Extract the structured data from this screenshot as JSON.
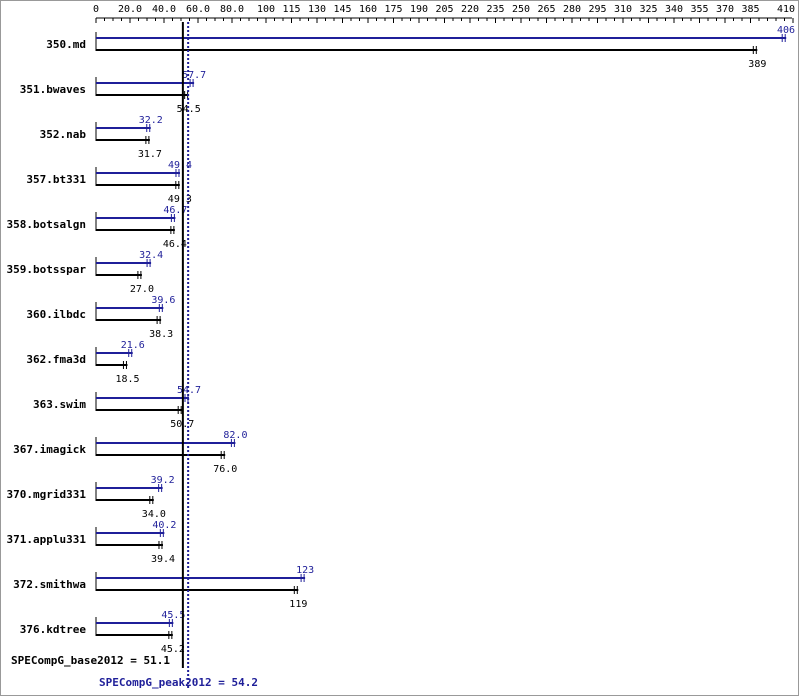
{
  "chart_data": {
    "type": "bar",
    "orientation": "horizontal",
    "x_ticks": [
      0,
      20,
      40,
      60,
      80,
      100,
      115,
      130,
      145,
      160,
      175,
      190,
      205,
      220,
      235,
      250,
      265,
      280,
      295,
      310,
      325,
      340,
      355,
      370,
      385,
      410
    ],
    "x_tick_labels": [
      "0",
      "20.0",
      "40.0",
      "60.0",
      "80.0",
      "100",
      "115",
      "130",
      "145",
      "160",
      "175",
      "190",
      "205",
      "220",
      "235",
      "250",
      "265",
      "280",
      "295",
      "310",
      "325",
      "340",
      "355",
      "370",
      "385",
      "410"
    ],
    "xlim": [
      0,
      410
    ],
    "categories": [
      "350.md",
      "351.bwaves",
      "352.nab",
      "357.bt331",
      "358.botsalgn",
      "359.botsspar",
      "360.ilbdc",
      "362.fma3d",
      "363.swim",
      "367.imagick",
      "370.mgrid331",
      "371.applu331",
      "372.smithwa",
      "376.kdtree"
    ],
    "series": [
      {
        "role": "peak",
        "color": "#1f1f99",
        "values": [
          406,
          57.7,
          32.2,
          49.4,
          46.7,
          32.4,
          39.6,
          21.6,
          54.7,
          82.0,
          39.2,
          40.2,
          123,
          45.5
        ],
        "labels": [
          "406",
          "57.7",
          "32.2",
          "49.4",
          "46.7",
          "32.4",
          "39.6",
          "21.6",
          "54.7",
          "82.0",
          "39.2",
          "40.2",
          "123",
          "45.5"
        ]
      },
      {
        "role": "base",
        "color": "#000000",
        "values": [
          389,
          54.5,
          31.7,
          49.3,
          46.4,
          27.0,
          38.3,
          18.5,
          50.7,
          76.0,
          34.0,
          39.4,
          119,
          45.2
        ],
        "labels": [
          "389",
          "54.5",
          "31.7",
          "49.3",
          "46.4",
          "27.0",
          "38.3",
          "18.5",
          "50.7",
          "76.0",
          "34.0",
          "39.4",
          "119",
          "45.2"
        ]
      }
    ],
    "summary": {
      "base_label": "SPECompG_base2012 = 51.1",
      "base_value": 51.1,
      "peak_label": "SPECompG_peak2012 = 54.2",
      "peak_value": 54.2
    }
  }
}
